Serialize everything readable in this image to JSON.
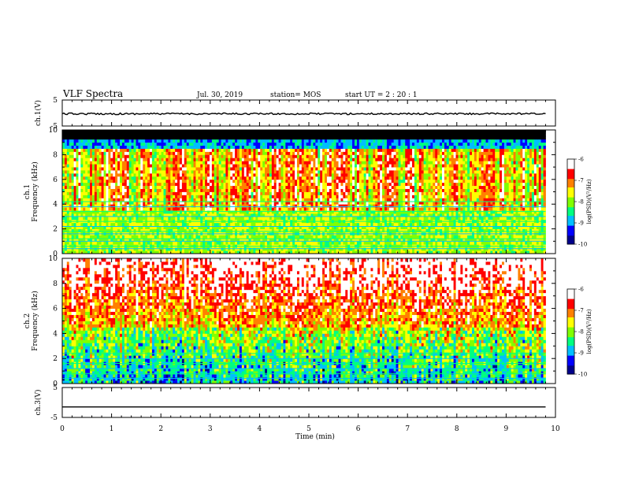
{
  "header": {
    "title": "VLF Spectra",
    "date": "Jul. 30, 2019",
    "station": "station= MOS",
    "start": "start  UT =   2 : 20 : 1"
  },
  "chart_data": [
    {
      "type": "line",
      "name": "ch1-voltage",
      "ylabel": "ch.1(V)",
      "ylim": [
        -5,
        5
      ],
      "ytick_labels": [
        "5",
        "-5"
      ],
      "xlim": [
        0,
        10
      ],
      "note_value": -0.3
    },
    {
      "type": "heatmap",
      "name": "ch1-spectrogram",
      "ylabel": "Frequency (kHz)",
      "ylabel2": "ch.1",
      "ylim": [
        0,
        10
      ],
      "ytick_labels": [
        "0",
        "2",
        "4",
        "6",
        "8",
        "10"
      ],
      "xlim": [
        0,
        9.8
      ],
      "colorbar": {
        "label": "log(PSD)(V²/Hz)",
        "range": [
          -10,
          -6
        ],
        "tick_labels": [
          "-6",
          "-7",
          "-8",
          "-9",
          "-10"
        ]
      }
    },
    {
      "type": "heatmap",
      "name": "ch2-spectrogram",
      "ylabel": "Frequency (kHz)",
      "ylabel2": "ch.2",
      "ylim": [
        0,
        10
      ],
      "ytick_labels": [
        "0",
        "2",
        "4",
        "6",
        "8",
        "10"
      ],
      "xlim": [
        0,
        9.8
      ],
      "colorbar": {
        "label": "log(PSD)(V²/Hz)",
        "range": [
          -10,
          -6
        ],
        "tick_labels": [
          "-6",
          "-7",
          "-8",
          "-9",
          "-10"
        ]
      }
    },
    {
      "type": "line",
      "name": "ch3-voltage",
      "ylabel": "ch.3(V)",
      "ylim": [
        -5,
        5
      ],
      "ytick_labels": [
        "5",
        "-5"
      ],
      "xlim": [
        0,
        10
      ],
      "note_value": -1.5
    }
  ],
  "xaxis": {
    "label": "Time (min)",
    "ticks": [
      0,
      1,
      2,
      3,
      4,
      5,
      6,
      7,
      8,
      9,
      10
    ],
    "tick_labels": [
      "0",
      "1",
      "2",
      "3",
      "4",
      "5",
      "6",
      "7",
      "8",
      "9",
      "10"
    ]
  },
  "colors": {
    "colormap": [
      "#00008b",
      "#0000ff",
      "#00bfff",
      "#00ff80",
      "#80ff00",
      "#ffff00",
      "#ff8000",
      "#ff0000",
      "#ffffff"
    ]
  }
}
